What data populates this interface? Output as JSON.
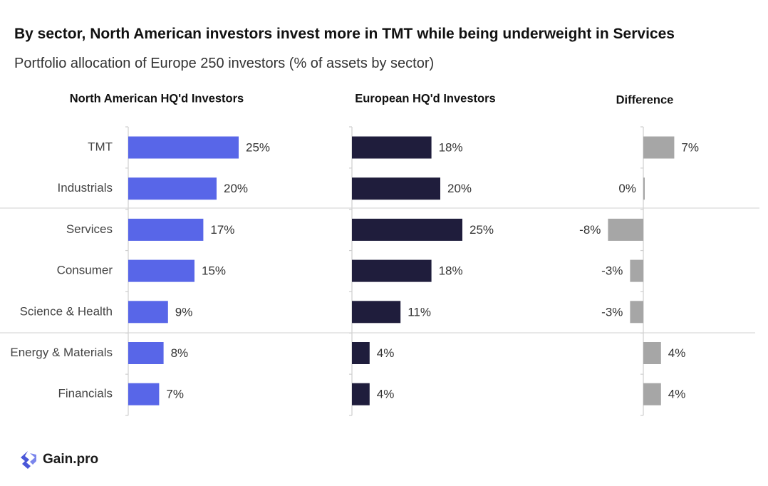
{
  "title": "By sector, North American investors invest more in TMT while being underweight in Services",
  "subtitle": "Portfolio allocation of Europe 250 investors (% of assets by sector)",
  "brand": "Gain.pro",
  "colors": {
    "north_america": "#5866e8",
    "europe": "#1f1d3c",
    "difference": "#a6a6a6",
    "axis": "#cfcfcf"
  },
  "chart_data": [
    {
      "type": "bar",
      "orientation": "horizontal",
      "title": "North American HQ'd Investors",
      "categories": [
        "TMT",
        "Industrials",
        "Services",
        "Consumer",
        "Science & Health",
        "Energy & Materials",
        "Financials"
      ],
      "values": [
        25,
        20,
        17,
        15,
        9,
        8,
        7
      ],
      "value_labels": [
        "25%",
        "20%",
        "17%",
        "15%",
        "9%",
        "8%",
        "7%"
      ],
      "unit": "%"
    },
    {
      "type": "bar",
      "orientation": "horizontal",
      "title": "European HQ'd Investors",
      "categories": [
        "TMT",
        "Industrials",
        "Services",
        "Consumer",
        "Science & Health",
        "Energy & Materials",
        "Financials"
      ],
      "values": [
        18,
        20,
        25,
        18,
        11,
        4,
        4
      ],
      "value_labels": [
        "18%",
        "20%",
        "25%",
        "18%",
        "11%",
        "4%",
        "4%"
      ],
      "unit": "%"
    },
    {
      "type": "bar",
      "orientation": "horizontal",
      "title": "Difference",
      "categories": [
        "TMT",
        "Industrials",
        "Services",
        "Consumer",
        "Science & Health",
        "Energy & Materials",
        "Financials"
      ],
      "values": [
        7,
        0,
        -8,
        -3,
        -3,
        4,
        4
      ],
      "value_labels": [
        "7%",
        "0%",
        "-8%",
        "-3%",
        "-3%",
        "4%",
        "4%"
      ],
      "unit": "%"
    }
  ]
}
